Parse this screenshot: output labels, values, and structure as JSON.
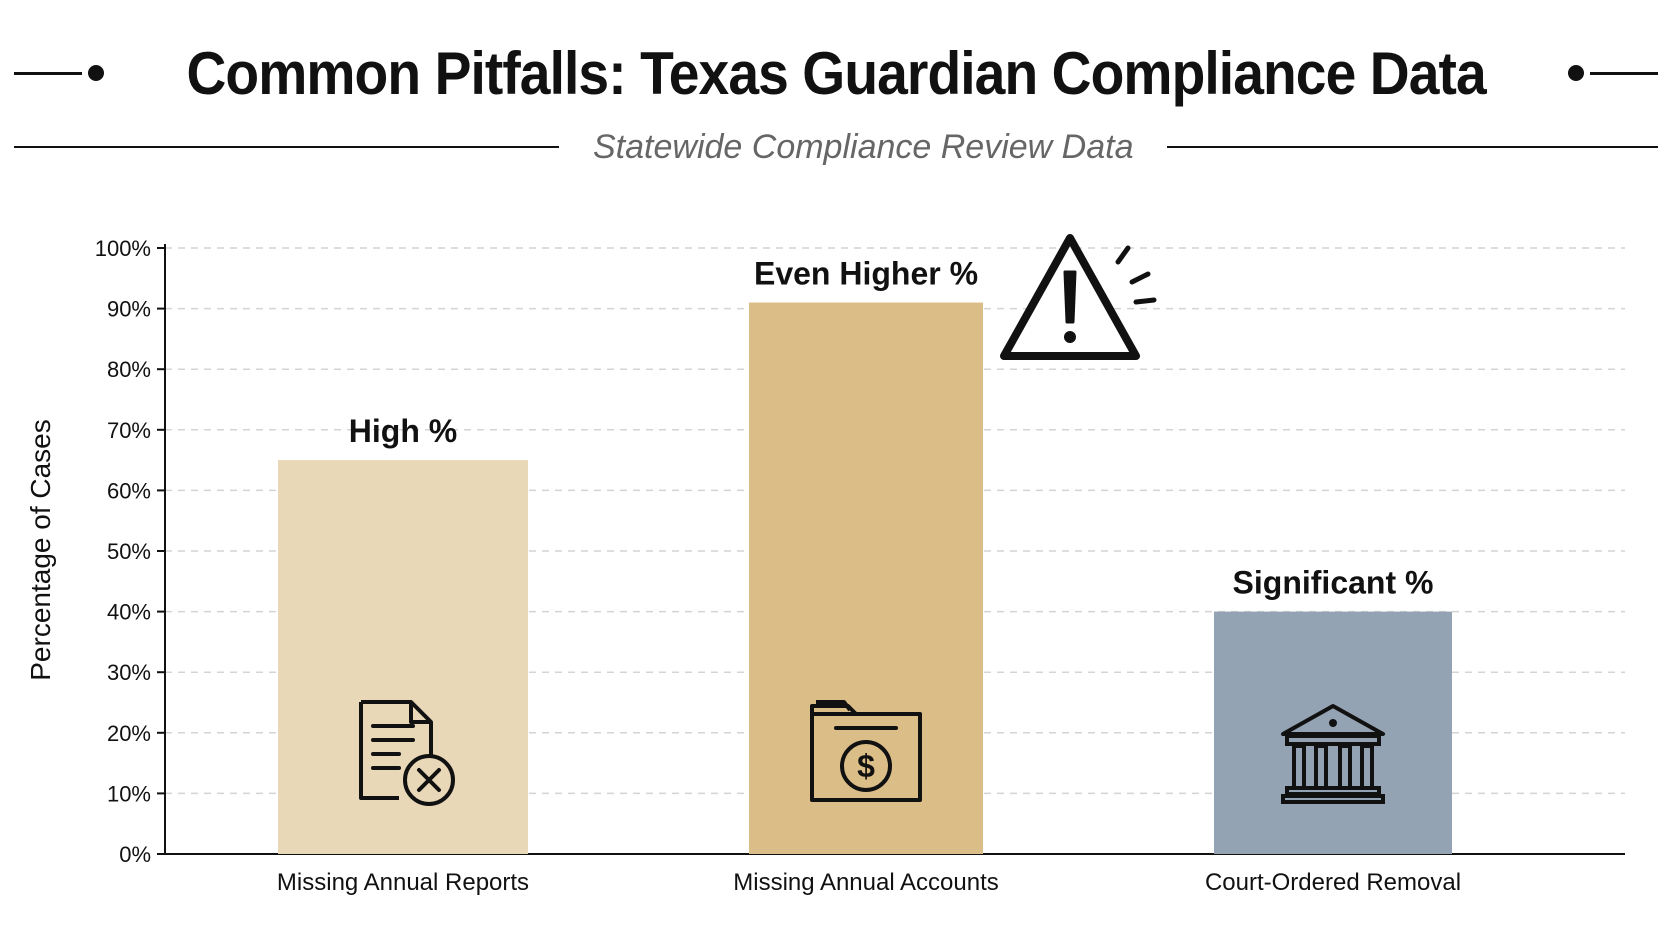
{
  "chart_data": {
    "type": "bar",
    "title": "Common Pitfalls: Texas Guardian Compliance Data",
    "subtitle": "Statewide Compliance Review Data",
    "ylabel": "Percentage of Cases",
    "xlabel": "",
    "ylim": [
      0,
      100
    ],
    "yticks": [
      0,
      10,
      20,
      30,
      40,
      50,
      60,
      70,
      80,
      90,
      100
    ],
    "ytick_suffix": "%",
    "grid": "horizontal-dashed",
    "categories": [
      "Missing Annual Reports",
      "Missing Annual Accounts",
      "Court-Ordered Removal"
    ],
    "values": [
      65,
      91,
      40
    ],
    "annotations": [
      "High %",
      "Even Higher %",
      "Significant %"
    ],
    "colors": [
      "#e8d8b8",
      "#dbbd88",
      "#94a3b3"
    ],
    "icons": [
      "document-x-icon",
      "folder-dollar-icon",
      "courthouse-icon"
    ],
    "callout_icon": "warning-triangle-icon"
  }
}
